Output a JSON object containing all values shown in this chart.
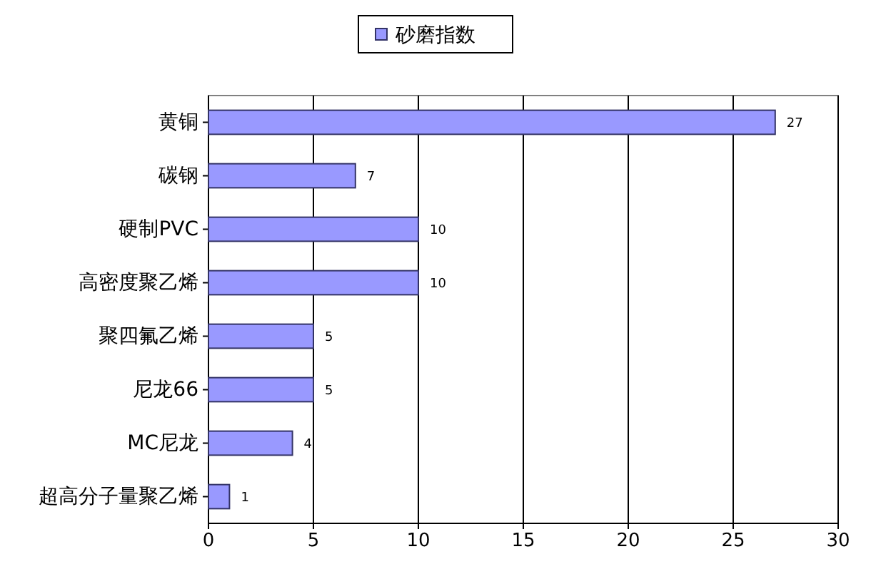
{
  "chart_data": {
    "type": "bar",
    "orientation": "horizontal",
    "categories": [
      "黄铜",
      "碳钢",
      "硬制PVC",
      "高密度聚乙烯",
      "聚四氟乙烯",
      "尼龙66",
      "MC尼龙",
      "超高分子量聚乙烯"
    ],
    "series": [
      {
        "name": "砂磨指数",
        "color": "#9999ff",
        "values": [
          27,
          7,
          10,
          10,
          5,
          5,
          4,
          1
        ]
      }
    ],
    "xlim": [
      0,
      30
    ],
    "xticks": [
      0,
      5,
      10,
      15,
      20,
      25,
      30
    ],
    "grid": "x",
    "legend": "top",
    "data_labels": true
  }
}
